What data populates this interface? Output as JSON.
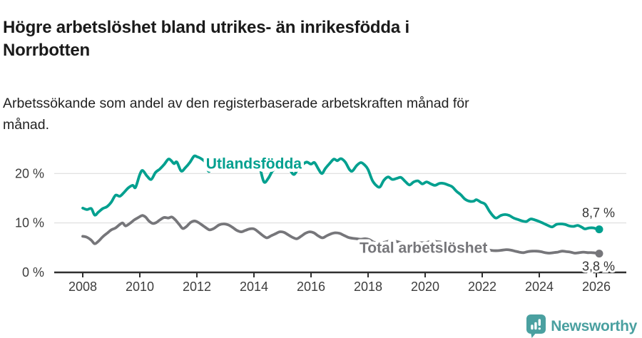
{
  "header": {
    "title_line1": "Högre arbetslöshet bland utrikes- än inrikesfödda i",
    "title_line2": "Norrbotten",
    "subtitle_line1": "Arbetssökande som andel av den registerbaserade arbetskraften månad för",
    "subtitle_line2": "månad."
  },
  "footer": {
    "brand": "Newsworthy",
    "brand_color": "#4aa0a0"
  },
  "chart_data": {
    "type": "line",
    "title": "Högre arbetslöshet bland utrikes- än inrikesfödda i Norrbotten",
    "subtitle": "Arbetssökande som andel av den registerbaserade arbetskraften månad för månad.",
    "xlabel": "",
    "ylabel": "",
    "x_axis": {
      "ticks": [
        2008,
        2010,
        2012,
        2014,
        2016,
        2018,
        2020,
        2022,
        2024,
        2026
      ],
      "range": [
        2007.0,
        2027.05
      ]
    },
    "y_axis": {
      "ticks": [
        0,
        10,
        20
      ],
      "tick_labels": [
        "0 %",
        "10 %",
        "20 %"
      ],
      "range": [
        0,
        24.5
      ]
    },
    "grid": "horizontal",
    "grid_color": "#d9d9d9",
    "axis_color": "#2f2f2f",
    "tick_text_color": "#3d3d3d",
    "legend_position": "inline-labels-on-lines",
    "series": [
      {
        "name": "Utlandsfödda",
        "color": "#00a08f",
        "end_label": "8,7 %",
        "end_value": 8.7,
        "label_anchor": {
          "year": 2012.32,
          "value": 21.0
        },
        "points": [
          [
            2008.0,
            13.0
          ],
          [
            2008.15,
            12.7
          ],
          [
            2008.3,
            12.9
          ],
          [
            2008.42,
            11.6
          ],
          [
            2008.55,
            12.2
          ],
          [
            2008.7,
            12.9
          ],
          [
            2008.85,
            13.3
          ],
          [
            2009.0,
            14.2
          ],
          [
            2009.15,
            15.6
          ],
          [
            2009.3,
            15.4
          ],
          [
            2009.45,
            16.2
          ],
          [
            2009.6,
            17.1
          ],
          [
            2009.75,
            17.6
          ],
          [
            2009.85,
            17.2
          ],
          [
            2010.0,
            19.8
          ],
          [
            2010.1,
            20.6
          ],
          [
            2010.25,
            19.5
          ],
          [
            2010.4,
            18.8
          ],
          [
            2010.55,
            20.2
          ],
          [
            2010.7,
            20.9
          ],
          [
            2010.85,
            21.8
          ],
          [
            2011.0,
            22.9
          ],
          [
            2011.1,
            22.6
          ],
          [
            2011.2,
            22.0
          ],
          [
            2011.3,
            22.3
          ],
          [
            2011.45,
            20.5
          ],
          [
            2011.6,
            21.2
          ],
          [
            2011.75,
            22.2
          ],
          [
            2011.9,
            23.5
          ],
          [
            2012.0,
            23.4
          ],
          [
            2012.15,
            23.0
          ],
          [
            2012.3,
            22.2
          ],
          [
            2012.42,
            20.4
          ],
          [
            2012.55,
            21.9
          ],
          [
            2012.7,
            22.5
          ],
          [
            2012.85,
            22.8
          ],
          [
            2013.0,
            22.9
          ],
          [
            2013.15,
            22.4
          ],
          [
            2013.3,
            21.6
          ],
          [
            2013.45,
            21.0
          ],
          [
            2013.6,
            21.8
          ],
          [
            2013.75,
            22.3
          ],
          [
            2013.9,
            22.4
          ],
          [
            2014.05,
            22.1
          ],
          [
            2014.2,
            21.2
          ],
          [
            2014.35,
            18.3
          ],
          [
            2014.5,
            19.0
          ],
          [
            2014.65,
            20.5
          ],
          [
            2014.8,
            21.1
          ],
          [
            2014.95,
            21.6
          ],
          [
            2015.1,
            21.4
          ],
          [
            2015.25,
            20.8
          ],
          [
            2015.4,
            19.8
          ],
          [
            2015.55,
            21.0
          ],
          [
            2015.7,
            21.8
          ],
          [
            2015.85,
            22.3
          ],
          [
            2016.0,
            21.9
          ],
          [
            2016.12,
            22.2
          ],
          [
            2016.25,
            21.0
          ],
          [
            2016.38,
            20.0
          ],
          [
            2016.5,
            21.0
          ],
          [
            2016.65,
            22.0
          ],
          [
            2016.8,
            22.9
          ],
          [
            2016.92,
            22.6
          ],
          [
            2017.05,
            23.0
          ],
          [
            2017.2,
            22.3
          ],
          [
            2017.35,
            20.8
          ],
          [
            2017.45,
            20.5
          ],
          [
            2017.6,
            21.6
          ],
          [
            2017.75,
            22.2
          ],
          [
            2017.9,
            21.6
          ],
          [
            2018.0,
            20.8
          ],
          [
            2018.15,
            18.6
          ],
          [
            2018.3,
            17.5
          ],
          [
            2018.42,
            17.3
          ],
          [
            2018.55,
            18.6
          ],
          [
            2018.7,
            19.3
          ],
          [
            2018.85,
            18.8
          ],
          [
            2019.0,
            19.0
          ],
          [
            2019.15,
            19.2
          ],
          [
            2019.3,
            18.4
          ],
          [
            2019.45,
            17.7
          ],
          [
            2019.6,
            18.3
          ],
          [
            2019.75,
            18.5
          ],
          [
            2019.9,
            17.9
          ],
          [
            2020.05,
            18.3
          ],
          [
            2020.2,
            17.9
          ],
          [
            2020.35,
            17.6
          ],
          [
            2020.5,
            18.0
          ],
          [
            2020.65,
            18.0
          ],
          [
            2020.8,
            17.7
          ],
          [
            2020.95,
            17.3
          ],
          [
            2021.1,
            16.4
          ],
          [
            2021.25,
            15.7
          ],
          [
            2021.4,
            14.8
          ],
          [
            2021.55,
            14.4
          ],
          [
            2021.7,
            14.4
          ],
          [
            2021.8,
            14.7
          ],
          [
            2021.95,
            14.2
          ],
          [
            2022.1,
            13.8
          ],
          [
            2022.25,
            12.4
          ],
          [
            2022.4,
            11.3
          ],
          [
            2022.5,
            11.0
          ],
          [
            2022.65,
            11.5
          ],
          [
            2022.8,
            11.7
          ],
          [
            2022.95,
            11.5
          ],
          [
            2023.1,
            11.0
          ],
          [
            2023.25,
            10.7
          ],
          [
            2023.4,
            10.4
          ],
          [
            2023.55,
            10.3
          ],
          [
            2023.7,
            10.8
          ],
          [
            2023.85,
            10.6
          ],
          [
            2024.0,
            10.3
          ],
          [
            2024.15,
            9.9
          ],
          [
            2024.3,
            9.5
          ],
          [
            2024.45,
            9.2
          ],
          [
            2024.6,
            9.7
          ],
          [
            2024.75,
            9.8
          ],
          [
            2024.9,
            9.7
          ],
          [
            2025.05,
            9.4
          ],
          [
            2025.2,
            9.3
          ],
          [
            2025.35,
            9.5
          ],
          [
            2025.5,
            9.1
          ],
          [
            2025.6,
            8.8
          ],
          [
            2025.75,
            9.0
          ],
          [
            2025.9,
            9.0
          ],
          [
            2026.0,
            8.8
          ],
          [
            2026.1,
            8.7
          ]
        ]
      },
      {
        "name": "Total arbetslöshet",
        "color": "#76767a",
        "end_label": "3,8 %",
        "end_value": 3.8,
        "label_anchor": {
          "year": 2017.7,
          "value": 4.0
        },
        "points": [
          [
            2008.0,
            7.3
          ],
          [
            2008.15,
            7.1
          ],
          [
            2008.3,
            6.5
          ],
          [
            2008.42,
            5.8
          ],
          [
            2008.55,
            6.3
          ],
          [
            2008.7,
            7.2
          ],
          [
            2008.85,
            7.9
          ],
          [
            2009.0,
            8.6
          ],
          [
            2009.15,
            9.0
          ],
          [
            2009.3,
            9.7
          ],
          [
            2009.4,
            10.0
          ],
          [
            2009.5,
            9.4
          ],
          [
            2009.65,
            9.9
          ],
          [
            2009.8,
            10.6
          ],
          [
            2009.95,
            11.1
          ],
          [
            2010.08,
            11.5
          ],
          [
            2010.2,
            11.2
          ],
          [
            2010.32,
            10.4
          ],
          [
            2010.45,
            9.9
          ],
          [
            2010.58,
            10.1
          ],
          [
            2010.7,
            10.6
          ],
          [
            2010.85,
            11.1
          ],
          [
            2011.0,
            11.0
          ],
          [
            2011.12,
            11.2
          ],
          [
            2011.25,
            10.6
          ],
          [
            2011.38,
            9.7
          ],
          [
            2011.5,
            8.9
          ],
          [
            2011.62,
            9.2
          ],
          [
            2011.78,
            10.1
          ],
          [
            2011.92,
            10.4
          ],
          [
            2012.05,
            10.1
          ],
          [
            2012.2,
            9.5
          ],
          [
            2012.35,
            8.9
          ],
          [
            2012.45,
            8.6
          ],
          [
            2012.6,
            8.9
          ],
          [
            2012.78,
            9.6
          ],
          [
            2012.95,
            9.8
          ],
          [
            2013.1,
            9.6
          ],
          [
            2013.25,
            9.1
          ],
          [
            2013.4,
            8.5
          ],
          [
            2013.55,
            8.2
          ],
          [
            2013.7,
            8.5
          ],
          [
            2013.85,
            8.8
          ],
          [
            2014.0,
            8.8
          ],
          [
            2014.15,
            8.2
          ],
          [
            2014.3,
            7.5
          ],
          [
            2014.45,
            7.0
          ],
          [
            2014.6,
            7.4
          ],
          [
            2014.75,
            7.8
          ],
          [
            2014.9,
            8.2
          ],
          [
            2015.05,
            8.1
          ],
          [
            2015.2,
            7.6
          ],
          [
            2015.35,
            7.1
          ],
          [
            2015.5,
            6.8
          ],
          [
            2015.65,
            7.3
          ],
          [
            2015.8,
            7.9
          ],
          [
            2015.95,
            8.2
          ],
          [
            2016.1,
            8.0
          ],
          [
            2016.25,
            7.4
          ],
          [
            2016.4,
            7.0
          ],
          [
            2016.55,
            7.4
          ],
          [
            2016.7,
            7.8
          ],
          [
            2016.85,
            8.0
          ],
          [
            2017.0,
            7.9
          ],
          [
            2017.15,
            7.5
          ],
          [
            2017.3,
            7.1
          ],
          [
            2017.45,
            6.9
          ],
          [
            2017.6,
            6.8
          ],
          [
            2017.75,
            6.7
          ],
          [
            2017.9,
            6.8
          ],
          [
            2018.05,
            6.6
          ],
          [
            2018.2,
            6.1
          ],
          [
            2018.35,
            5.9
          ],
          [
            2018.5,
            6.0
          ],
          [
            2018.65,
            6.2
          ],
          [
            2018.8,
            6.4
          ],
          [
            2018.95,
            6.3
          ],
          [
            2019.1,
            6.1
          ],
          [
            2019.25,
            5.9
          ],
          [
            2019.4,
            5.7
          ],
          [
            2019.55,
            5.8
          ],
          [
            2019.7,
            5.9
          ],
          [
            2019.85,
            6.0
          ],
          [
            2020.0,
            6.0
          ],
          [
            2020.15,
            6.2
          ],
          [
            2020.3,
            6.3
          ],
          [
            2020.45,
            6.2
          ],
          [
            2020.6,
            6.1
          ],
          [
            2020.75,
            5.9
          ],
          [
            2020.9,
            5.7
          ],
          [
            2021.05,
            5.5
          ],
          [
            2021.2,
            5.3
          ],
          [
            2021.35,
            5.1
          ],
          [
            2021.5,
            5.0
          ],
          [
            2021.65,
            4.9
          ],
          [
            2021.8,
            4.9
          ],
          [
            2021.95,
            4.8
          ],
          [
            2022.1,
            4.7
          ],
          [
            2022.25,
            4.5
          ],
          [
            2022.4,
            4.4
          ],
          [
            2022.55,
            4.4
          ],
          [
            2022.7,
            4.5
          ],
          [
            2022.85,
            4.6
          ],
          [
            2023.0,
            4.5
          ],
          [
            2023.15,
            4.3
          ],
          [
            2023.3,
            4.1
          ],
          [
            2023.45,
            4.0
          ],
          [
            2023.6,
            4.2
          ],
          [
            2023.75,
            4.3
          ],
          [
            2023.9,
            4.3
          ],
          [
            2024.05,
            4.2
          ],
          [
            2024.2,
            4.0
          ],
          [
            2024.35,
            3.9
          ],
          [
            2024.5,
            4.0
          ],
          [
            2024.65,
            4.1
          ],
          [
            2024.8,
            4.3
          ],
          [
            2024.95,
            4.2
          ],
          [
            2025.1,
            4.1
          ],
          [
            2025.25,
            3.9
          ],
          [
            2025.4,
            4.0
          ],
          [
            2025.55,
            4.1
          ],
          [
            2025.7,
            4.0
          ],
          [
            2025.85,
            4.0
          ],
          [
            2026.0,
            3.9
          ],
          [
            2026.1,
            3.8
          ]
        ]
      }
    ]
  }
}
